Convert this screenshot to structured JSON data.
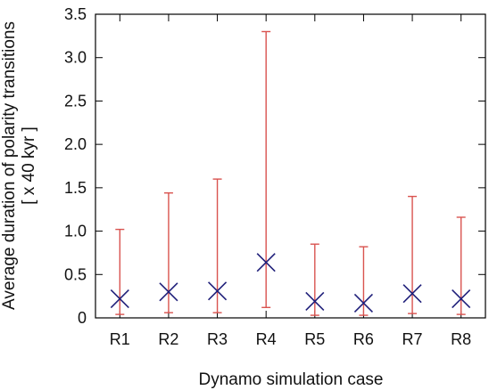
{
  "chart_data": {
    "type": "scatter",
    "title": "",
    "xlabel": "Dynamo simulation case",
    "ylabel_line1": "Average duration of polarity transitions",
    "ylabel_line2": "[ x 40 kyr ]",
    "categories": [
      "R1",
      "R2",
      "R3",
      "R4",
      "R5",
      "R6",
      "R7",
      "R8"
    ],
    "series": [
      {
        "values": [
          0.22,
          0.3,
          0.31,
          0.64,
          0.19,
          0.17,
          0.28,
          0.22
        ],
        "min": [
          0.04,
          0.06,
          0.06,
          0.12,
          0.03,
          0.03,
          0.05,
          0.04
        ],
        "max": [
          1.02,
          1.44,
          1.6,
          3.3,
          0.85,
          0.82,
          1.4,
          1.16
        ]
      }
    ],
    "ylim": [
      0,
      3.5
    ],
    "yticks": [
      "0",
      "0.5",
      "1.0",
      "1.5",
      "2.0",
      "2.5",
      "3.0",
      "3.5"
    ],
    "grid": false,
    "colors": {
      "errorbar": "#d9534f",
      "marker": "#1f1f7a",
      "axis": "#000000"
    }
  }
}
